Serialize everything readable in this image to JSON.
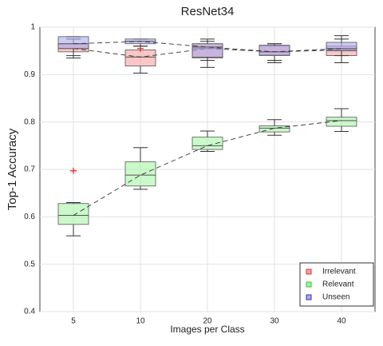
{
  "chart_data": {
    "type": "box",
    "title": "ResNet34",
    "xlabel": "Images per Class",
    "ylabel": "Top-1 Accuracy",
    "categories": [
      "5",
      "10",
      "20",
      "30",
      "40"
    ],
    "ylim": [
      0.4,
      1
    ],
    "yticks": [
      0.4,
      0.5,
      0.6,
      0.7,
      0.8,
      0.9,
      1
    ],
    "grid": true,
    "legend": "lower right",
    "series": [
      {
        "name": "Irrelevant",
        "color": "#e03030",
        "fill": "#f6a0a0",
        "min": [
          0.935,
          0.903,
          0.915,
          0.925,
          0.925
        ],
        "q1": [
          0.948,
          0.918,
          0.935,
          0.942,
          0.94
        ],
        "median": [
          0.955,
          0.937,
          0.955,
          0.948,
          0.952
        ],
        "q3": [
          0.965,
          0.952,
          0.965,
          0.96,
          0.96
        ],
        "max": [
          0.975,
          0.96,
          0.975,
          0.965,
          0.982
        ],
        "outliers": [
          [],
          [
            0.955
          ],
          [],
          [],
          []
        ]
      },
      {
        "name": "Relevant",
        "color": "#30c030",
        "fill": "#a8f5a8",
        "min": [
          0.56,
          0.658,
          0.738,
          0.772,
          0.78
        ],
        "q1": [
          0.584,
          0.665,
          0.742,
          0.779,
          0.791
        ],
        "median": [
          0.603,
          0.688,
          0.75,
          0.787,
          0.803
        ],
        "q3": [
          0.628,
          0.716,
          0.768,
          0.792,
          0.81
        ],
        "max": [
          0.63,
          0.746,
          0.781,
          0.805,
          0.828
        ],
        "outliers": [
          [
            0.697
          ],
          [],
          [],
          [],
          []
        ]
      },
      {
        "name": "Unseen",
        "color": "#3030d0",
        "fill": "#a8a8f0",
        "min": [
          0.94,
          0.96,
          0.93,
          0.93,
          0.94
        ],
        "q1": [
          0.955,
          0.965,
          0.937,
          0.94,
          0.95
        ],
        "median": [
          0.965,
          0.97,
          0.958,
          0.948,
          0.955
        ],
        "q3": [
          0.98,
          0.975,
          0.965,
          0.962,
          0.968
        ],
        "max": [
          0.98,
          0.975,
          0.97,
          0.965,
          0.975
        ],
        "outliers": [
          [],
          [],
          [],
          [],
          []
        ]
      }
    ]
  }
}
